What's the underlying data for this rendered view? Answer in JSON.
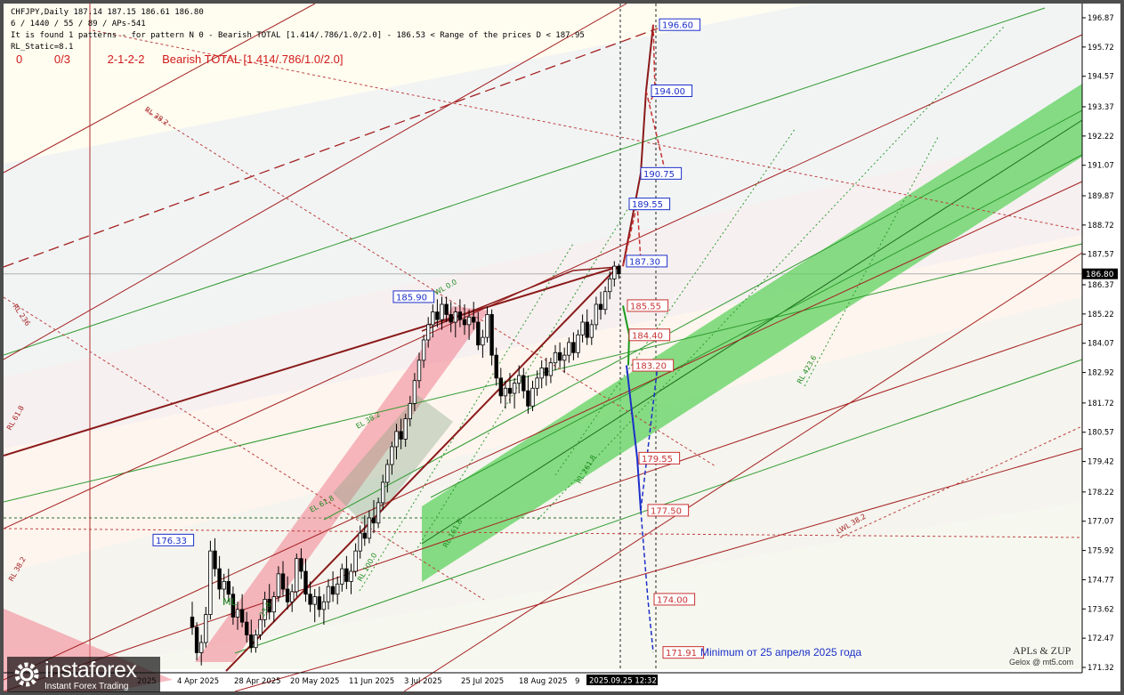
{
  "header": {
    "line1": "CHFJPY,Daily  187.14 187.15 186.61 186.80",
    "line2": "6 / 1440 / 55 / 89 / APs-541",
    "line3": "It is found 1 patterns  -  for pattern N 0 - Bearish TOTAL [1.414/.786/1.0/2.0] - 186.53 < Range of the prices D < 187.95",
    "line4": "RL_Static=8.1",
    "pattern_row": [
      "0",
      "0/3",
      "2-1-2-2",
      "Bearish TOTAL [1.414/.786/1.0/2.0]"
    ]
  },
  "annotations": {
    "minimum_note": "Minimum от 25 апреля 2025 года",
    "brand_line1": "APLs & ZUP",
    "brand_line2": "Gelox @ mt5.com",
    "logo_name": "instaforex",
    "logo_tagline": "Instant Forex Trading"
  },
  "colors": {
    "background": "#fffdf0",
    "up_candle": "#ffffff",
    "down_candle": "#000000",
    "green_channel": "#5fd35f",
    "pink_channel": "#f08090",
    "brown_line": "#9b1b1b",
    "blue_forecast": "#1c2fc9",
    "red_forecast": "#c83232",
    "green_forecast": "#1a9a1a",
    "price_badge": "#000000"
  },
  "chart_data": {
    "type": "candlestick",
    "symbol": "CHFJPY",
    "timeframe": "Daily",
    "ylim": [
      171.33,
      197.2
    ],
    "price_ticks": [
      "196.87",
      "195.72",
      "194.57",
      "193.37",
      "192.22",
      "191.07",
      "189.87",
      "188.72",
      "187.57",
      "186.37",
      "185.22",
      "184.07",
      "182.92",
      "181.72",
      "180.57",
      "179.42",
      "178.22",
      "177.07",
      "175.92",
      "174.77",
      "173.62",
      "172.47",
      "171.32"
    ],
    "current_price": "186.80",
    "date_labels": [
      "2025",
      "4 Apr 2025",
      "28 Apr 2025",
      "20 May 2025",
      "11 Jun 2025",
      "3 Jul 2025",
      "25 Jul 2025",
      "18 Aug 2025",
      "9"
    ],
    "cursor_date": "2025.09.25 12:32",
    "candles": [
      [
        173.3,
        173.9,
        172.6,
        172.9
      ],
      [
        172.9,
        173.1,
        171.6,
        171.9
      ],
      [
        171.9,
        172.6,
        171.4,
        172.3
      ],
      [
        172.3,
        173.7,
        172.1,
        173.4
      ],
      [
        173.4,
        176.3,
        173.2,
        175.9
      ],
      [
        175.9,
        176.4,
        174.9,
        175.2
      ],
      [
        175.2,
        175.7,
        174.0,
        174.4
      ],
      [
        174.4,
        175.0,
        173.8,
        174.7
      ],
      [
        174.7,
        175.2,
        173.9,
        174.2
      ],
      [
        174.2,
        174.5,
        173.0,
        173.3
      ],
      [
        173.3,
        173.9,
        172.8,
        173.6
      ],
      [
        173.6,
        174.2,
        172.9,
        173.1
      ],
      [
        173.1,
        173.5,
        172.3,
        172.6
      ],
      [
        172.6,
        173.2,
        171.9,
        172.1
      ],
      [
        172.1,
        172.8,
        171.9,
        172.6
      ],
      [
        172.6,
        173.4,
        172.4,
        173.2
      ],
      [
        173.2,
        174.3,
        172.9,
        174.0
      ],
      [
        174.0,
        174.6,
        173.2,
        173.5
      ],
      [
        173.5,
        174.3,
        173.1,
        174.1
      ],
      [
        174.1,
        175.3,
        173.9,
        175.0
      ],
      [
        175.0,
        175.5,
        174.1,
        174.4
      ],
      [
        174.4,
        174.9,
        173.6,
        173.9
      ],
      [
        173.9,
        174.6,
        173.5,
        174.3
      ],
      [
        174.3,
        175.8,
        174.1,
        175.6
      ],
      [
        175.6,
        176.0,
        174.8,
        175.1
      ],
      [
        175.1,
        175.6,
        173.9,
        174.2
      ],
      [
        174.2,
        174.7,
        173.5,
        173.8
      ],
      [
        173.8,
        174.4,
        173.1,
        174.1
      ],
      [
        174.1,
        174.5,
        173.3,
        173.6
      ],
      [
        173.6,
        174.2,
        173.0,
        173.9
      ],
      [
        173.9,
        174.8,
        173.6,
        174.5
      ],
      [
        174.5,
        175.1,
        173.9,
        174.2
      ],
      [
        174.2,
        174.9,
        173.8,
        174.6
      ],
      [
        174.6,
        175.4,
        174.3,
        175.2
      ],
      [
        175.2,
        175.7,
        174.4,
        174.7
      ],
      [
        174.7,
        175.4,
        174.2,
        175.1
      ],
      [
        175.1,
        176.2,
        174.9,
        175.9
      ],
      [
        175.9,
        176.9,
        175.6,
        176.6
      ],
      [
        176.6,
        177.3,
        176.1,
        176.4
      ],
      [
        176.4,
        177.5,
        176.2,
        177.2
      ],
      [
        177.2,
        177.9,
        176.6,
        177.0
      ],
      [
        177.0,
        178.0,
        176.8,
        177.8
      ],
      [
        177.8,
        178.9,
        177.5,
        178.6
      ],
      [
        178.6,
        179.5,
        178.2,
        179.3
      ],
      [
        179.3,
        180.2,
        178.9,
        180.0
      ],
      [
        180.0,
        180.9,
        179.5,
        180.6
      ],
      [
        180.6,
        181.1,
        179.9,
        180.3
      ],
      [
        180.3,
        181.3,
        180.0,
        181.1
      ],
      [
        181.1,
        182.0,
        180.8,
        181.7
      ],
      [
        181.7,
        182.9,
        181.4,
        182.6
      ],
      [
        182.6,
        183.7,
        182.3,
        183.4
      ],
      [
        183.4,
        184.4,
        183.1,
        184.2
      ],
      [
        184.2,
        185.1,
        183.9,
        184.8
      ],
      [
        184.8,
        185.6,
        184.3,
        185.3
      ],
      [
        185.3,
        185.8,
        184.7,
        185.0
      ],
      [
        185.0,
        185.9,
        184.6,
        185.6
      ],
      [
        185.6,
        185.9,
        184.9,
        185.2
      ],
      [
        185.2,
        185.7,
        184.5,
        184.9
      ],
      [
        184.9,
        185.5,
        184.3,
        185.3
      ],
      [
        185.3,
        185.8,
        184.7,
        185.0
      ],
      [
        185.0,
        185.6,
        184.4,
        184.8
      ],
      [
        184.8,
        185.4,
        184.2,
        185.1
      ],
      [
        185.1,
        185.7,
        184.6,
        184.9
      ],
      [
        184.9,
        185.3,
        183.8,
        184.0
      ],
      [
        184.0,
        184.6,
        183.5,
        184.3
      ],
      [
        184.3,
        185.5,
        184.1,
        185.2
      ],
      [
        185.2,
        185.4,
        183.2,
        183.6
      ],
      [
        183.6,
        183.9,
        182.4,
        182.7
      ],
      [
        182.7,
        183.1,
        181.7,
        182.0
      ],
      [
        182.0,
        182.6,
        181.5,
        182.3
      ],
      [
        182.3,
        182.9,
        181.7,
        182.1
      ],
      [
        182.1,
        182.7,
        181.5,
        182.5
      ],
      [
        182.5,
        183.2,
        182.1,
        182.8
      ],
      [
        182.8,
        183.1,
        181.9,
        182.2
      ],
      [
        182.2,
        182.8,
        181.3,
        181.6
      ],
      [
        181.6,
        182.6,
        181.4,
        182.3
      ],
      [
        182.3,
        183.0,
        182.0,
        182.7
      ],
      [
        182.7,
        183.4,
        182.3,
        183.1
      ],
      [
        183.1,
        183.5,
        182.4,
        182.8
      ],
      [
        182.8,
        183.5,
        182.5,
        183.3
      ],
      [
        183.3,
        184.0,
        183.0,
        183.7
      ],
      [
        183.7,
        184.1,
        183.1,
        183.4
      ],
      [
        183.4,
        183.9,
        182.9,
        183.6
      ],
      [
        183.6,
        184.3,
        183.3,
        184.1
      ],
      [
        184.1,
        184.5,
        183.4,
        183.7
      ],
      [
        183.7,
        184.6,
        183.5,
        184.4
      ],
      [
        184.4,
        185.2,
        184.1,
        184.9
      ],
      [
        184.9,
        185.4,
        184.0,
        184.3
      ],
      [
        184.3,
        185.0,
        184.0,
        184.8
      ],
      [
        184.8,
        185.9,
        184.6,
        185.6
      ],
      [
        185.6,
        186.1,
        185.0,
        185.4
      ],
      [
        185.4,
        186.3,
        185.2,
        186.1
      ],
      [
        186.1,
        186.9,
        185.8,
        186.6
      ],
      [
        186.6,
        187.3,
        186.3,
        187.1
      ],
      [
        187.1,
        187.2,
        186.6,
        186.8
      ]
    ],
    "price_labels": [
      {
        "text": "196.60",
        "price": 196.6,
        "style": "blue"
      },
      {
        "text": "194.00",
        "price": 194.0,
        "style": "blue"
      },
      {
        "text": "190.75",
        "price": 190.75,
        "style": "blue"
      },
      {
        "text": "189.55",
        "price": 189.55,
        "style": "blue"
      },
      {
        "text": "187.30",
        "price": 187.3,
        "style": "blue"
      },
      {
        "text": "185.90",
        "price": 185.9,
        "style": "blue"
      },
      {
        "text": "176.33",
        "price": 176.33,
        "style": "blue"
      },
      {
        "text": "185.55",
        "price": 185.55,
        "style": "red"
      },
      {
        "text": "184.40",
        "price": 184.4,
        "style": "red"
      },
      {
        "text": "183.20",
        "price": 183.2,
        "style": "red"
      },
      {
        "text": "179.55",
        "price": 179.55,
        "style": "red"
      },
      {
        "text": "177.50",
        "price": 177.5,
        "style": "red"
      },
      {
        "text": "174.00",
        "price": 174.0,
        "style": "red"
      },
      {
        "text": "171.91",
        "price": 171.91,
        "style": "red"
      }
    ],
    "line_labels": [
      {
        "text": "RL 38.2",
        "color": "brown"
      },
      {
        "text": "RL 236",
        "color": "brown"
      },
      {
        "text": "RL 61.8",
        "color": "brown"
      },
      {
        "text": "RL 38.2",
        "color": "brown"
      },
      {
        "text": "LWL 38.2",
        "color": "brown"
      },
      {
        "text": "WL 0.0",
        "color": "green"
      },
      {
        "text": "EL 38.2",
        "color": "green"
      },
      {
        "text": "EL 61.8",
        "color": "green"
      },
      {
        "text": "RL 161.8",
        "color": "green"
      },
      {
        "text": "RL 100.0",
        "color": "green"
      },
      {
        "text": "RL 261.8",
        "color": "green"
      },
      {
        "text": "RL 423.6",
        "color": "green"
      },
      {
        "text": "ML",
        "color": "green"
      },
      {
        "text": "23.6",
        "color": "green"
      }
    ]
  }
}
